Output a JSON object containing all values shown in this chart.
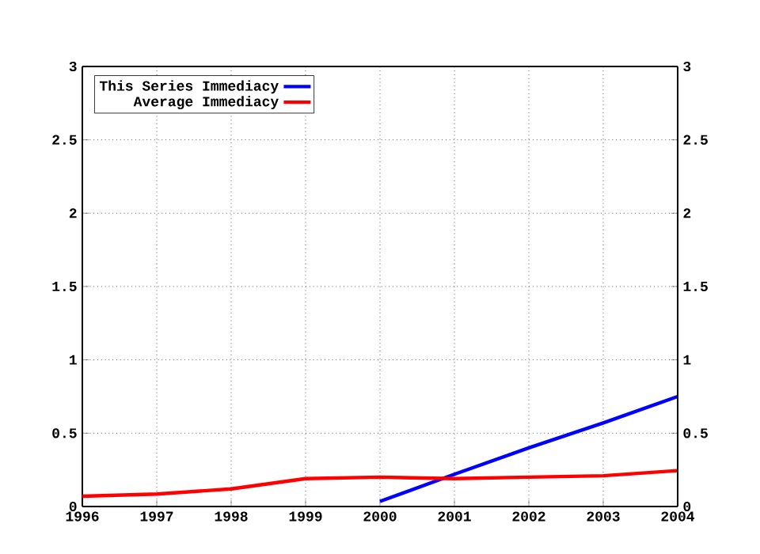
{
  "chart_data": {
    "type": "line",
    "x": [
      1996,
      1997,
      1998,
      1999,
      2000,
      2001,
      2002,
      2003,
      2004
    ],
    "series": [
      {
        "name": "This Series Immediacy",
        "color": "#0000ff",
        "values": [
          null,
          null,
          null,
          null,
          0.035,
          0.22,
          0.4,
          0.57,
          0.75
        ]
      },
      {
        "name": "Average Immediacy",
        "color": "#ff0000",
        "values": [
          0.07,
          0.085,
          0.12,
          0.19,
          0.2,
          0.19,
          0.2,
          0.21,
          0.245
        ]
      }
    ],
    "xlim": [
      1996,
      2004
    ],
    "xticks": [
      1996,
      1997,
      1998,
      1999,
      2000,
      2001,
      2002,
      2003,
      2004
    ],
    "ylim": [
      0,
      3
    ],
    "yticks": [
      0,
      0.5,
      1,
      1.5,
      2,
      2.5,
      3
    ],
    "y2lim": [
      0,
      3
    ],
    "y2ticks": [
      0,
      0.5,
      1,
      1.5,
      2,
      2.5,
      3
    ],
    "grid": true,
    "legend": "top left",
    "marker": "none",
    "line_style": "solid"
  }
}
